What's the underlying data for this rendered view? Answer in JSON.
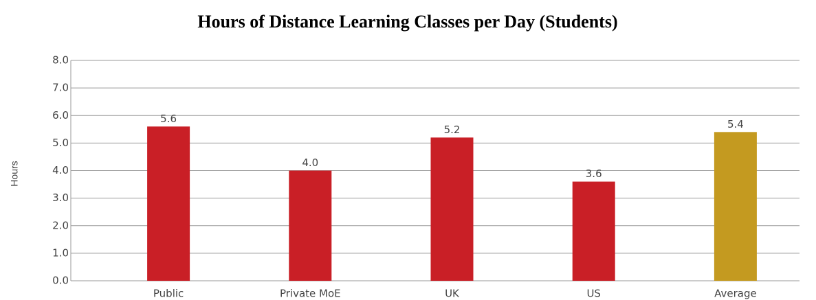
{
  "chart_data": {
    "type": "bar",
    "title": "Hours of Distance Learning Classes per Day (Students)",
    "y_label": "Hours",
    "categories": [
      "Public",
      "Private MoE",
      "UK",
      "US",
      "Average"
    ],
    "values": [
      5.6,
      4.0,
      5.2,
      3.6,
      5.4
    ],
    "value_labels": [
      "5.6",
      "4.0",
      "5.2",
      "3.6",
      "5.4"
    ],
    "colors": [
      "#c91f26",
      "#c91f26",
      "#c91f26",
      "#c91f26",
      "#c49a20"
    ],
    "ylim": [
      0,
      8
    ],
    "yticks": [
      {
        "value": 0,
        "label": "0.0"
      },
      {
        "value": 1,
        "label": "1.0"
      },
      {
        "value": 2,
        "label": "2.0"
      },
      {
        "value": 3,
        "label": "3.0"
      },
      {
        "value": 4,
        "label": "4.0"
      },
      {
        "value": 5,
        "label": "5.0"
      },
      {
        "value": 6,
        "label": "6.0"
      },
      {
        "value": 7,
        "label": "7.0"
      },
      {
        "value": 8,
        "label": "8.0"
      }
    ],
    "grid": true
  }
}
